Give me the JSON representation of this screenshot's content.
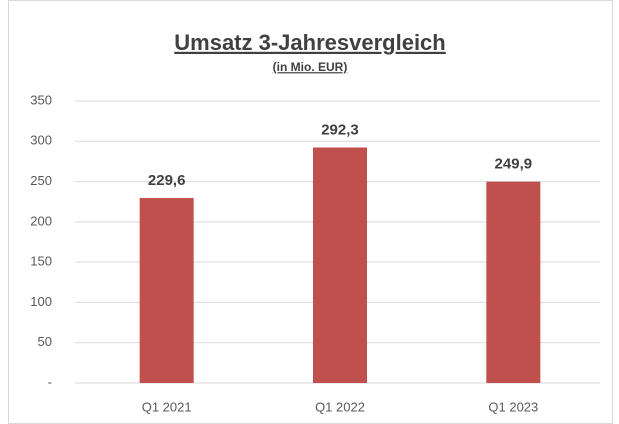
{
  "chart_data": {
    "type": "bar",
    "title": "Umsatz 3-Jahresvergleich",
    "subtitle": "(in Mio. EUR)",
    "categories": [
      "Q1 2021",
      "Q1 2022",
      "Q1 2023"
    ],
    "values": [
      229.6,
      292.3,
      249.9
    ],
    "value_labels": [
      "229,6",
      "292,3",
      "249,9"
    ],
    "color": "#c0504d",
    "ylim": [
      0,
      350
    ],
    "yticks": [
      {
        "value": 0,
        "label": "-"
      },
      50,
      100,
      150,
      200,
      250,
      300,
      350
    ],
    "grid": true
  }
}
